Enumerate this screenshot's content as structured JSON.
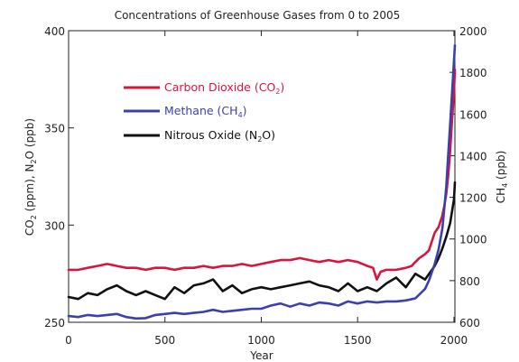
{
  "chart_data": {
    "type": "line",
    "title": "Concentrations of Greenhouse Gases from 0 to 2005",
    "xlabel": "Year",
    "ylabel_left": "CO2 (ppm), N2O (ppb)",
    "ylabel_right": "CH4 (ppb)",
    "xlim": [
      0,
      2005
    ],
    "ylim_left": [
      250,
      400
    ],
    "ylim_right": [
      600,
      2000
    ],
    "x_ticks": [
      "0",
      "500",
      "1000",
      "1500",
      "2000"
    ],
    "y_left_ticks": [
      "250",
      "300",
      "350",
      "400"
    ],
    "y_right_ticks": [
      "600",
      "800",
      "1000",
      "1200",
      "1400",
      "1600",
      "1800",
      "2000"
    ],
    "grid": false,
    "legend_position": "top-left",
    "series": [
      {
        "name": "Carbon Dioxide (CO2)",
        "color": "#d9143f",
        "axis": "left",
        "x": [
          0,
          50,
          100,
          150,
          200,
          250,
          300,
          350,
          400,
          450,
          500,
          550,
          600,
          650,
          700,
          750,
          800,
          850,
          900,
          950,
          1000,
          1050,
          1100,
          1150,
          1200,
          1250,
          1300,
          1350,
          1400,
          1450,
          1500,
          1550,
          1580,
          1600,
          1620,
          1650,
          1700,
          1750,
          1780,
          1800,
          1820,
          1850,
          1870,
          1900,
          1920,
          1940,
          1950,
          1960,
          1970,
          1980,
          1990,
          2000,
          2005
        ],
        "values": [
          277,
          277,
          278,
          279,
          280,
          279,
          278,
          278,
          277,
          278,
          278,
          277,
          278,
          278,
          279,
          278,
          279,
          279,
          280,
          279,
          280,
          281,
          282,
          282,
          283,
          282,
          281,
          282,
          281,
          282,
          281,
          279,
          278,
          272,
          276,
          277,
          277,
          278,
          279,
          281,
          283,
          285,
          287,
          296,
          299,
          305,
          310,
          316,
          325,
          338,
          354,
          368,
          380
        ]
      },
      {
        "name": "Methane (CH4)",
        "color": "#3d3fad",
        "axis": "right",
        "x": [
          0,
          50,
          100,
          150,
          200,
          250,
          300,
          350,
          400,
          450,
          500,
          550,
          600,
          650,
          700,
          750,
          800,
          850,
          900,
          950,
          1000,
          1050,
          1100,
          1150,
          1200,
          1250,
          1300,
          1350,
          1400,
          1450,
          1500,
          1550,
          1600,
          1650,
          1700,
          1750,
          1800,
          1850,
          1870,
          1900,
          1920,
          1940,
          1950,
          1960,
          1970,
          1980,
          1990,
          2000,
          2005
        ],
        "values": [
          630,
          625,
          635,
          630,
          635,
          640,
          625,
          618,
          620,
          635,
          640,
          645,
          640,
          645,
          650,
          660,
          650,
          655,
          660,
          665,
          665,
          680,
          690,
          675,
          690,
          680,
          695,
          690,
          680,
          700,
          690,
          700,
          695,
          700,
          700,
          705,
          715,
          760,
          800,
          880,
          950,
          1050,
          1150,
          1250,
          1400,
          1550,
          1700,
          1850,
          1930
        ]
      },
      {
        "name": "Nitrous Oxide (N2O)",
        "color": "#111111",
        "axis": "left",
        "x": [
          0,
          50,
          100,
          150,
          200,
          250,
          300,
          350,
          400,
          450,
          500,
          550,
          600,
          650,
          700,
          750,
          800,
          850,
          900,
          950,
          1000,
          1050,
          1100,
          1150,
          1200,
          1250,
          1300,
          1350,
          1400,
          1450,
          1500,
          1550,
          1600,
          1650,
          1700,
          1750,
          1800,
          1850,
          1900,
          1920,
          1940,
          1960,
          1980,
          2000,
          2005
        ],
        "values": [
          263,
          262,
          265,
          264,
          267,
          269,
          266,
          264,
          266,
          264,
          262,
          268,
          265,
          269,
          270,
          272,
          266,
          269,
          265,
          267,
          268,
          267,
          268,
          269,
          270,
          271,
          269,
          268,
          266,
          270,
          266,
          268,
          266,
          270,
          273,
          268,
          275,
          272,
          279,
          283,
          288,
          294,
          301,
          313,
          322
        ]
      }
    ]
  },
  "legend": {
    "co2": {
      "main": "Carbon Dioxide (CO",
      "sub": "2",
      "end": ")"
    },
    "ch4": {
      "main": "Methane (CH",
      "sub": "4",
      "end": ")"
    },
    "n2o": {
      "main": "Nitrous Oxide (N",
      "sub": "2",
      "end": "O)"
    }
  },
  "axis_labels": {
    "left": {
      "a": "CO",
      "a_sub": "2",
      "b": " (ppm), N",
      "b_sub": "2",
      "c": "O (ppb)"
    },
    "right": {
      "a": "CH",
      "a_sub": "4",
      "b": " (ppb)"
    }
  }
}
